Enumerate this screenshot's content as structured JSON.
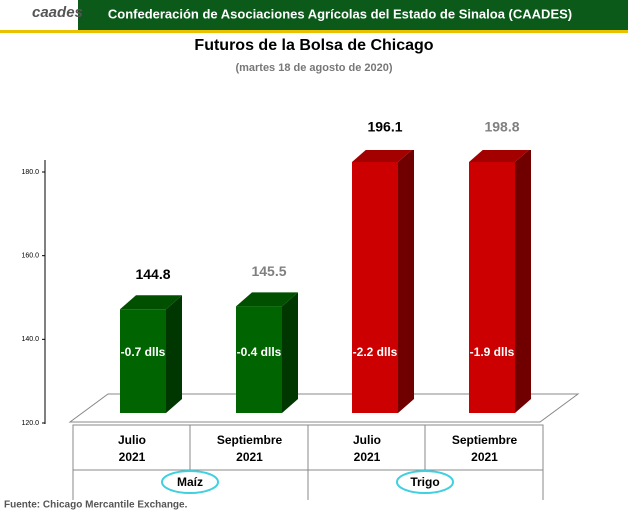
{
  "header": {
    "logo": "caades",
    "title": "Confederación de Asociaciones Agrícolas del Estado de Sinaloa (CAADES)"
  },
  "chart_data": {
    "type": "bar3d",
    "title": "Futuros de la Bolsa de Chicago",
    "subtitle": "(martes 18 de agosto de 2020)",
    "categories": [
      [
        "Julio",
        "2021"
      ],
      [
        "Septiembre",
        "2021"
      ],
      [
        "Julio",
        "2021"
      ],
      [
        "Septiembre",
        "2021"
      ]
    ],
    "values": [
      144.8,
      145.5,
      196.1,
      198.8
    ],
    "colors": [
      "#006400",
      "#006400",
      "#cc0000",
      "#cc0000"
    ],
    "value_label_colors": [
      "#000000",
      "#808080",
      "#000000",
      "#808080"
    ],
    "annotations": [
      "-0.7 dlls",
      "-0.4 dlls",
      "-2.2 dlls",
      "-1.9 dlls"
    ],
    "groups": [
      "Maíz",
      "Trigo"
    ],
    "ylim": [
      120,
      180
    ],
    "yticks": [
      {
        "value": 120,
        "label": "120.0"
      },
      {
        "value": 140,
        "label": "140.0"
      },
      {
        "value": 160,
        "label": "160.0"
      },
      {
        "value": 180,
        "label": "180.0"
      }
    ]
  },
  "footer": "Fuente: Chicago Mercantile Exchange."
}
